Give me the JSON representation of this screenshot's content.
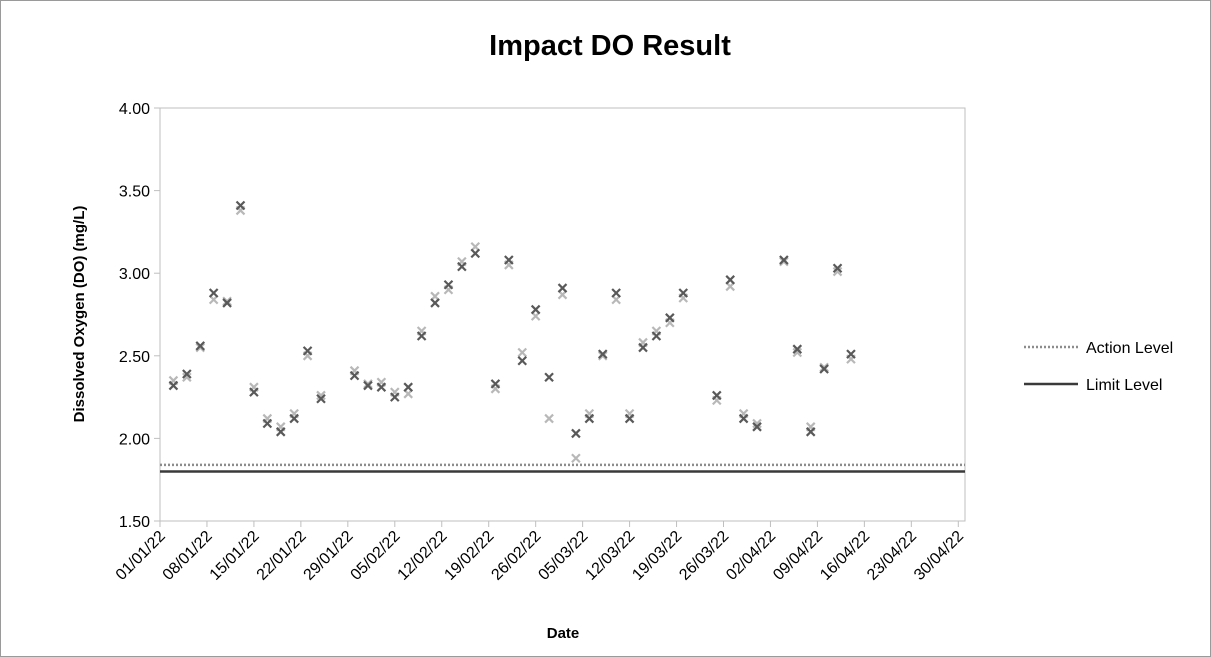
{
  "chart_data": {
    "type": "scatter",
    "title": "Impact DO Result",
    "xlabel": "Date",
    "ylabel": "Dissolved Oxygen (DO) (mg/L)",
    "ylim": [
      1.5,
      4.0
    ],
    "xlim": [
      "2021-12-31",
      "2022-04-30"
    ],
    "y_ticks": [
      "1.50",
      "2.00",
      "2.50",
      "3.00",
      "3.50",
      "4.00"
    ],
    "x_ticks": [
      "01/01/22",
      "08/01/22",
      "15/01/22",
      "22/01/22",
      "29/01/22",
      "05/02/22",
      "12/02/22",
      "19/02/22",
      "26/02/22",
      "05/03/22",
      "12/03/22",
      "19/03/22",
      "26/03/22",
      "02/04/22",
      "09/04/22",
      "16/04/22",
      "23/04/22",
      "30/04/22"
    ],
    "x_tick_dates": [
      "2021-12-31",
      "2022-01-07",
      "2022-01-14",
      "2022-01-21",
      "2022-01-28",
      "2022-02-04",
      "2022-02-11",
      "2022-02-18",
      "2022-02-25",
      "2022-03-04",
      "2022-03-11",
      "2022-03-18",
      "2022-03-25",
      "2022-04-01",
      "2022-04-08",
      "2022-04-15",
      "2022-04-22",
      "2022-04-29"
    ],
    "grid": false,
    "legend_position": "right",
    "series": [
      {
        "color": "#595959",
        "marker": "x",
        "points": [
          [
            "2022-01-02",
            2.32
          ],
          [
            "2022-01-04",
            2.39
          ],
          [
            "2022-01-06",
            2.56
          ],
          [
            "2022-01-08",
            2.88
          ],
          [
            "2022-01-10",
            2.82
          ],
          [
            "2022-01-12",
            3.41
          ],
          [
            "2022-01-14",
            2.28
          ],
          [
            "2022-01-16",
            2.09
          ],
          [
            "2022-01-18",
            2.04
          ],
          [
            "2022-01-20",
            2.12
          ],
          [
            "2022-01-22",
            2.53
          ],
          [
            "2022-01-24",
            2.24
          ],
          [
            "2022-01-29",
            2.38
          ],
          [
            "2022-01-31",
            2.32
          ],
          [
            "2022-02-02",
            2.31
          ],
          [
            "2022-02-04",
            2.25
          ],
          [
            "2022-02-06",
            2.31
          ],
          [
            "2022-02-08",
            2.62
          ],
          [
            "2022-02-10",
            2.82
          ],
          [
            "2022-02-12",
            2.93
          ],
          [
            "2022-02-14",
            3.04
          ],
          [
            "2022-02-16",
            3.12
          ],
          [
            "2022-02-19",
            2.33
          ],
          [
            "2022-02-21",
            3.08
          ],
          [
            "2022-02-23",
            2.47
          ],
          [
            "2022-02-25",
            2.78
          ],
          [
            "2022-02-27",
            2.37
          ],
          [
            "2022-03-01",
            2.91
          ],
          [
            "2022-03-03",
            2.03
          ],
          [
            "2022-03-05",
            2.12
          ],
          [
            "2022-03-07",
            2.51
          ],
          [
            "2022-03-09",
            2.88
          ],
          [
            "2022-03-11",
            2.12
          ],
          [
            "2022-03-13",
            2.55
          ],
          [
            "2022-03-15",
            2.62
          ],
          [
            "2022-03-17",
            2.73
          ],
          [
            "2022-03-19",
            2.88
          ],
          [
            "2022-03-24",
            2.26
          ],
          [
            "2022-03-26",
            2.96
          ],
          [
            "2022-03-28",
            2.12
          ],
          [
            "2022-03-30",
            2.07
          ],
          [
            "2022-04-03",
            3.08
          ],
          [
            "2022-04-05",
            2.54
          ],
          [
            "2022-04-07",
            2.04
          ],
          [
            "2022-04-09",
            2.42
          ],
          [
            "2022-04-11",
            3.03
          ],
          [
            "2022-04-13",
            2.51
          ]
        ]
      },
      {
        "color": "#b8b8b8",
        "marker": "x",
        "points": [
          [
            "2022-01-02",
            2.35
          ],
          [
            "2022-01-04",
            2.37
          ],
          [
            "2022-01-06",
            2.55
          ],
          [
            "2022-01-08",
            2.84
          ],
          [
            "2022-01-10",
            2.83
          ],
          [
            "2022-01-12",
            3.38
          ],
          [
            "2022-01-14",
            2.31
          ],
          [
            "2022-01-16",
            2.12
          ],
          [
            "2022-01-18",
            2.07
          ],
          [
            "2022-01-20",
            2.15
          ],
          [
            "2022-01-22",
            2.5
          ],
          [
            "2022-01-24",
            2.26
          ],
          [
            "2022-01-29",
            2.41
          ],
          [
            "2022-01-31",
            2.33
          ],
          [
            "2022-02-02",
            2.34
          ],
          [
            "2022-02-04",
            2.28
          ],
          [
            "2022-02-06",
            2.27
          ],
          [
            "2022-02-08",
            2.65
          ],
          [
            "2022-02-10",
            2.86
          ],
          [
            "2022-02-12",
            2.9
          ],
          [
            "2022-02-14",
            3.07
          ],
          [
            "2022-02-16",
            3.16
          ],
          [
            "2022-02-19",
            2.3
          ],
          [
            "2022-02-21",
            3.05
          ],
          [
            "2022-02-23",
            2.52
          ],
          [
            "2022-02-25",
            2.74
          ],
          [
            "2022-02-27",
            2.12
          ],
          [
            "2022-03-01",
            2.87
          ],
          [
            "2022-03-03",
            1.88
          ],
          [
            "2022-03-05",
            2.15
          ],
          [
            "2022-03-07",
            2.5
          ],
          [
            "2022-03-09",
            2.84
          ],
          [
            "2022-03-11",
            2.15
          ],
          [
            "2022-03-13",
            2.58
          ],
          [
            "2022-03-15",
            2.65
          ],
          [
            "2022-03-17",
            2.7
          ],
          [
            "2022-03-19",
            2.85
          ],
          [
            "2022-03-24",
            2.23
          ],
          [
            "2022-03-26",
            2.92
          ],
          [
            "2022-03-28",
            2.15
          ],
          [
            "2022-03-30",
            2.09
          ],
          [
            "2022-04-03",
            3.07
          ],
          [
            "2022-04-05",
            2.52
          ],
          [
            "2022-04-07",
            2.07
          ],
          [
            "2022-04-09",
            2.43
          ],
          [
            "2022-04-11",
            3.01
          ],
          [
            "2022-04-13",
            2.48
          ]
        ]
      }
    ],
    "lines": [
      {
        "name": "Action Level",
        "value": 1.84,
        "color": "#8c8c8c",
        "style": "dotted"
      },
      {
        "name": "Limit Level",
        "value": 1.8,
        "color": "#3a3a3a",
        "style": "solid"
      }
    ]
  }
}
